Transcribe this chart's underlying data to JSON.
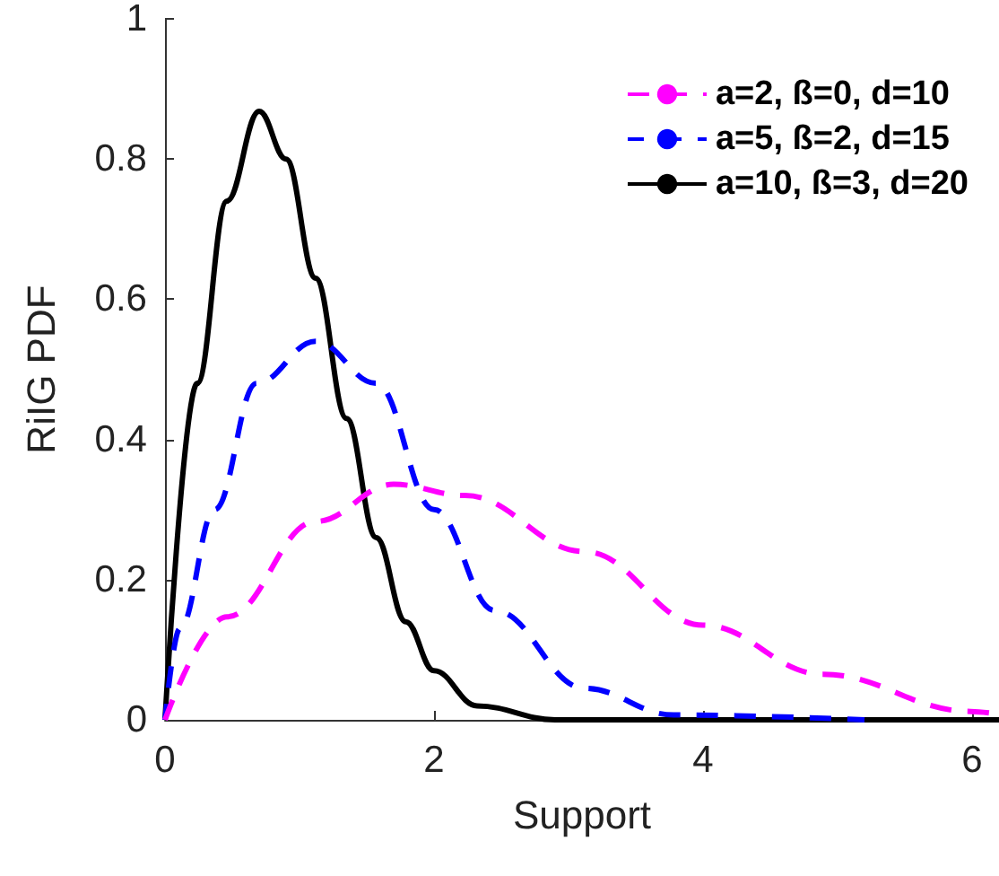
{
  "chart_data": {
    "type": "line",
    "xlabel": "Support",
    "ylabel": "RiIG PDF",
    "xlim": [
      0,
      6.2
    ],
    "xticks": [
      0,
      2,
      4,
      6
    ],
    "ylim": [
      0,
      1
    ],
    "yticks": [
      0,
      0.2,
      0.4,
      0.6,
      0.8,
      1
    ],
    "grid": false,
    "legend": "top right",
    "marker": "none",
    "series": [
      {
        "name": "a=2, ß=0, d=10",
        "color": "#ff00ff",
        "line_style": "dashed",
        "x": [
          0,
          0.46,
          1.12,
          1.7,
          2.23,
          3.12,
          4.0,
          4.89,
          5.99,
          6.2
        ],
        "values": [
          0,
          0.147,
          0.283,
          0.336,
          0.32,
          0.24,
          0.135,
          0.065,
          0.012,
          0.008
        ]
      },
      {
        "name": "a=5, ß=2, d=15",
        "color": "#0000ff",
        "line_style": "dashed",
        "x": [
          0,
          0.11,
          0.37,
          0.68,
          1.12,
          1.57,
          2.0,
          2.45,
          3.12,
          3.78,
          5.2
        ],
        "values": [
          0,
          0.13,
          0.3,
          0.48,
          0.54,
          0.48,
          0.3,
          0.156,
          0.045,
          0.007,
          0
        ]
      },
      {
        "name": "a=10, ß=3, d=20",
        "color": "#000000",
        "line_style": "solid",
        "x": [
          0,
          0.24,
          0.46,
          0.7,
          0.9,
          1.12,
          1.35,
          1.57,
          1.79,
          2.0,
          2.32,
          2.9,
          6.2
        ],
        "values": [
          0,
          0.48,
          0.74,
          0.868,
          0.8,
          0.63,
          0.43,
          0.26,
          0.14,
          0.07,
          0.02,
          0,
          0
        ]
      }
    ]
  }
}
